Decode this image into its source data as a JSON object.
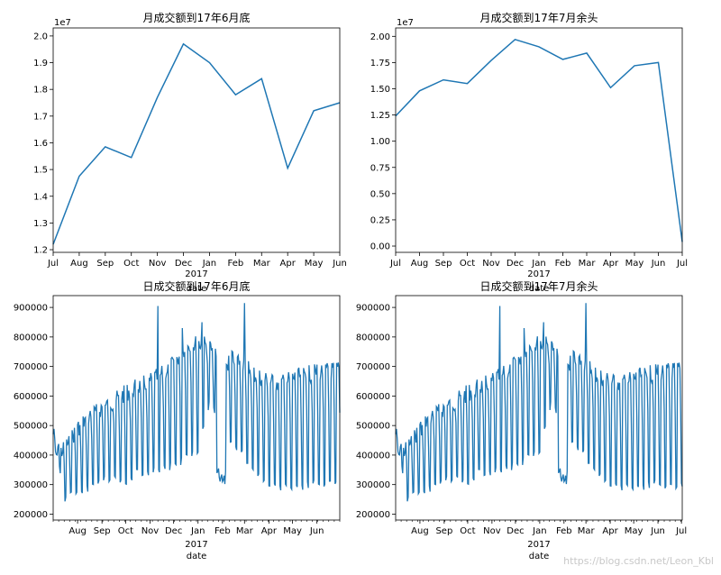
{
  "watermark": "https://blog.csdn.net/Leon_Kbl",
  "charts": {
    "monthly_jun": {
      "title": "月成交额到17年6月底",
      "offset_label": "1e7",
      "x_year_label": "2017",
      "x_axis_label": "date",
      "month_labels": [
        "Jul",
        "Aug",
        "Sep",
        "Oct",
        "Nov",
        "Dec",
        "Jan",
        "Feb",
        "Mar",
        "Apr",
        "May",
        "Jun"
      ],
      "y_tick_labels": [
        "1.2",
        "1.3",
        "1.4",
        "1.5",
        "1.6",
        "1.7",
        "1.8",
        "1.9",
        "2.0"
      ]
    },
    "monthly_jul": {
      "title": "月成交额到17年7月余头",
      "offset_label": "1e7",
      "x_year_label": "2017",
      "x_axis_label": "date",
      "month_labels": [
        "Jul",
        "Aug",
        "Sep",
        "Oct",
        "Nov",
        "Dec",
        "Jan",
        "Feb",
        "Mar",
        "Apr",
        "May",
        "Jun",
        "Jul"
      ],
      "y_tick_labels": [
        "0.00",
        "0.25",
        "0.50",
        "0.75",
        "1.00",
        "1.25",
        "1.50",
        "1.75",
        "2.00"
      ]
    },
    "daily_jun": {
      "title": "日成交额到17年6月底",
      "x_year_label": "2017",
      "x_axis_label": "date",
      "month_labels": [
        "Aug",
        "Sep",
        "Oct",
        "Nov",
        "Dec",
        "Jan",
        "Feb",
        "Mar",
        "Apr",
        "May",
        "Jun"
      ],
      "y_tick_labels": [
        "200000",
        "300000",
        "400000",
        "500000",
        "600000",
        "700000",
        "800000",
        "900000"
      ]
    },
    "daily_jul": {
      "title": "日成交额到17年7月余头",
      "x_year_label": "2017",
      "x_axis_label": "date",
      "month_labels": [
        "Aug",
        "Sep",
        "Oct",
        "Nov",
        "Dec",
        "Jan",
        "Feb",
        "Mar",
        "Apr",
        "May",
        "Jun",
        "Jul"
      ],
      "y_tick_labels": [
        "200000",
        "300000",
        "400000",
        "500000",
        "600000",
        "700000",
        "800000",
        "900000"
      ]
    }
  },
  "chart_data": [
    {
      "type": "line",
      "title": "月成交额到17年6月底",
      "xlabel": "date",
      "ylabel": "",
      "y_scale_label": "1e7",
      "categories": [
        "2016-07",
        "2016-08",
        "2016-09",
        "2016-10",
        "2016-11",
        "2016-12",
        "2017-01",
        "2017-02",
        "2017-03",
        "2017-04",
        "2017-05",
        "2017-06"
      ],
      "values": [
        12200000,
        14750000,
        15850000,
        15450000,
        17700000,
        19700000,
        19000000,
        17800000,
        18400000,
        15050000,
        17200000,
        17500000
      ],
      "ylim": [
        11900000,
        20300000
      ],
      "color": "#1f77b4",
      "grid": false
    },
    {
      "type": "line",
      "title": "月成交额到17年7月余头",
      "xlabel": "date",
      "ylabel": "",
      "y_scale_label": "1e7",
      "categories": [
        "2016-07",
        "2016-08",
        "2016-09",
        "2016-10",
        "2016-11",
        "2016-12",
        "2017-01",
        "2017-02",
        "2017-03",
        "2017-04",
        "2017-05",
        "2017-06",
        "2017-07"
      ],
      "values": [
        12400000,
        14800000,
        15850000,
        15500000,
        17700000,
        19700000,
        19000000,
        17800000,
        18400000,
        15100000,
        17200000,
        17500000,
        400000
      ],
      "ylim": [
        -600000,
        20800000
      ],
      "color": "#1f77b4",
      "grid": false
    },
    {
      "type": "line",
      "title": "日成交额到17年6月底",
      "xlabel": "date",
      "ylabel": "",
      "x_range": [
        "2016-07-01",
        "2017-06-30"
      ],
      "ylim": [
        180000,
        940000
      ],
      "color": "#1f77b4",
      "weekly_profile": [
        [
          "2016-07-01",
          420000,
          490000
        ],
        [
          "2016-07-15",
          450000,
          235000
        ],
        [
          "2016-08-01",
          520000,
          255000
        ],
        [
          "2016-08-15",
          560000,
          270000
        ],
        [
          "2016-09-01",
          590000,
          300000
        ],
        [
          "2016-09-15",
          610000,
          310000
        ],
        [
          "2016-10-01",
          640000,
          285000
        ],
        [
          "2016-10-15",
          660000,
          330000
        ],
        [
          "2016-11-01",
          680000,
          330000
        ],
        [
          "2016-11-15",
          700000,
          340000
        ],
        [
          "2016-12-01",
          740000,
          350000
        ],
        [
          "2016-12-15",
          790000,
          370000
        ],
        [
          "2017-01-01",
          810000,
          390000
        ],
        [
          "2017-01-15",
          800000,
          560000
        ],
        [
          "2017-02-01",
          720000,
          480000
        ],
        [
          "2017-02-15",
          760000,
          420000
        ],
        [
          "2017-03-01",
          740000,
          380000
        ],
        [
          "2017-03-15",
          700000,
          330000
        ],
        [
          "2017-04-01",
          680000,
          280000
        ],
        [
          "2017-04-15",
          670000,
          270000
        ],
        [
          "2017-05-01",
          690000,
          275000
        ],
        [
          "2017-05-15",
          700000,
          280000
        ],
        [
          "2017-06-01",
          710000,
          290000
        ],
        [
          "2017-06-30",
          720000,
          300000
        ]
      ],
      "spikes": [
        [
          "2016-11-11",
          905000
        ],
        [
          "2017-03-01",
          915000
        ],
        [
          "2017-01-06",
          850000
        ],
        [
          "2016-12-12",
          830000
        ]
      ]
    },
    {
      "type": "line",
      "title": "日成交额到17年7月余头",
      "xlabel": "date",
      "ylabel": "",
      "x_range": [
        "2016-07-01",
        "2017-07-02"
      ],
      "ylim": [
        180000,
        940000
      ],
      "color": "#1f77b4",
      "weekly_profile": [
        [
          "2016-07-01",
          420000,
          490000
        ],
        [
          "2016-07-15",
          450000,
          235000
        ],
        [
          "2016-08-01",
          520000,
          255000
        ],
        [
          "2016-08-15",
          560000,
          270000
        ],
        [
          "2016-09-01",
          590000,
          300000
        ],
        [
          "2016-09-15",
          610000,
          310000
        ],
        [
          "2016-10-01",
          640000,
          285000
        ],
        [
          "2016-10-15",
          660000,
          330000
        ],
        [
          "2016-11-01",
          680000,
          330000
        ],
        [
          "2016-11-15",
          700000,
          340000
        ],
        [
          "2016-12-01",
          740000,
          350000
        ],
        [
          "2016-12-15",
          790000,
          370000
        ],
        [
          "2017-01-01",
          810000,
          390000
        ],
        [
          "2017-01-15",
          800000,
          560000
        ],
        [
          "2017-02-01",
          720000,
          480000
        ],
        [
          "2017-02-15",
          760000,
          420000
        ],
        [
          "2017-03-01",
          740000,
          380000
        ],
        [
          "2017-03-15",
          700000,
          330000
        ],
        [
          "2017-04-01",
          680000,
          280000
        ],
        [
          "2017-04-15",
          670000,
          270000
        ],
        [
          "2017-05-01",
          690000,
          275000
        ],
        [
          "2017-05-15",
          700000,
          280000
        ],
        [
          "2017-06-01",
          710000,
          290000
        ],
        [
          "2017-07-02",
          720000,
          280000
        ]
      ],
      "spikes": [
        [
          "2016-11-11",
          905000
        ],
        [
          "2017-03-01",
          915000
        ],
        [
          "2017-01-06",
          850000
        ],
        [
          "2016-12-12",
          830000
        ]
      ]
    }
  ]
}
